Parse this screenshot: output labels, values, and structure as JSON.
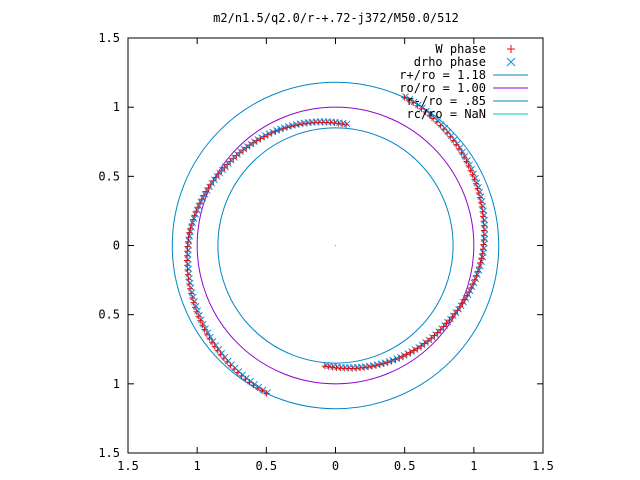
{
  "chart_data": {
    "type": "scatter",
    "title": "m2/n1.5/q2.0/r-+.72-j372/M50.0/512",
    "xlim": [
      -1.5,
      1.5
    ],
    "ylim": [
      -1.5,
      1.5
    ],
    "x_ticks": [
      -1.5,
      -1,
      -0.5,
      0,
      0.5,
      1,
      1.5
    ],
    "y_ticks": [
      -1.5,
      -1,
      -0.5,
      0,
      0.5,
      1,
      1.5
    ],
    "x_tick_labels": [
      "1.5",
      "1",
      "0.5",
      "0",
      "0.5",
      "1",
      "1.5"
    ],
    "y_tick_labels": [
      "1.5",
      "1",
      "0.5",
      "0",
      "0.5",
      "1",
      "1.5"
    ],
    "grid": false,
    "legend_position": "top-right",
    "circles": [
      {
        "name": "r+/ro = 1.18",
        "radius": 1.18,
        "color": "#0087c8"
      },
      {
        "name": "ro/ro = 1.00",
        "radius": 1.0,
        "color": "#9400d3"
      },
      {
        "name": "r-/ro = .85",
        "radius": 0.85,
        "color": "#0087c8"
      },
      {
        "name": "rc/ro = NaN",
        "radius": null,
        "color": "#00c8c8"
      }
    ],
    "series": [
      {
        "name": "W phase",
        "marker": "plus",
        "color": "#e01010"
      },
      {
        "name": "drho phase",
        "marker": "cross",
        "color": "#1a8fe0"
      }
    ],
    "arcs": [
      {
        "start_deg": 85,
        "end_deg": 145,
        "r_start": 0.875,
        "r_end": 0.98
      },
      {
        "start_deg": 145,
        "end_deg": 175,
        "r_start": 0.98,
        "r_end": 1.06
      },
      {
        "start_deg": 175,
        "end_deg": 245,
        "r_start": 1.06,
        "r_end": 1.18
      },
      {
        "start_deg": 265,
        "end_deg": 325,
        "r_start": 0.875,
        "r_end": 0.98
      },
      {
        "start_deg": 325,
        "end_deg": 355,
        "r_start": 0.98,
        "r_end": 1.06
      },
      {
        "start_deg": 355,
        "end_deg": 425,
        "r_start": 1.06,
        "r_end": 1.18
      }
    ]
  }
}
